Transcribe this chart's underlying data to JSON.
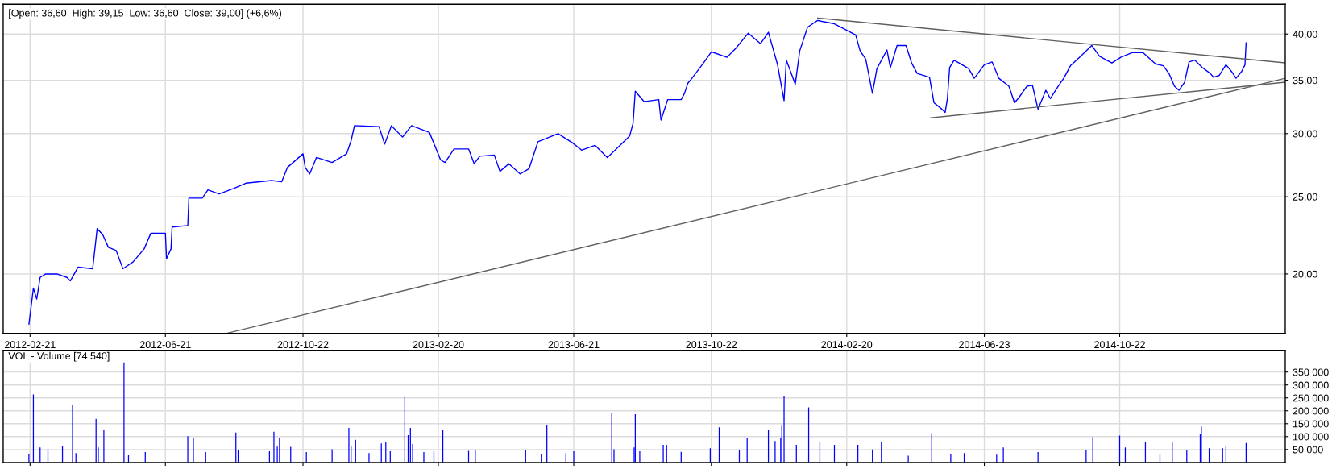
{
  "chart_data": [
    {
      "type": "line",
      "title": "[Open: 36,60  High: 39,15  Low: 36,60  Close: 39,00] (+6,6%)",
      "log": "y",
      "grid": true,
      "xlim": [
        "2012-01-28",
        "2015-03-19"
      ],
      "ylim": [
        16.84,
        43.6
      ],
      "xticks": [
        "2012-02-21",
        "2012-06-21",
        "2012-10-22",
        "2013-02-20",
        "2013-06-21",
        "2013-10-22",
        "2014-02-20",
        "2014-06-23",
        "2014-10-22"
      ],
      "yticks": [
        {
          "value": 20,
          "label": "20,00"
        },
        {
          "value": 25,
          "label": "25,00"
        },
        {
          "value": 30,
          "label": "30,00"
        },
        {
          "value": 35,
          "label": "35,00"
        },
        {
          "value": 40,
          "label": "40,00"
        }
      ],
      "x": [
        "2012-02-20",
        "2012-02-23",
        "2012-02-24",
        "2012-02-27",
        "2012-03-01",
        "2012-03-06",
        "2012-03-16",
        "2012-03-25",
        "2012-03-28",
        "2012-04-04",
        "2012-04-17",
        "2012-04-21",
        "2012-04-26",
        "2012-05-01",
        "2012-05-08",
        "2012-05-14",
        "2012-05-23",
        "2012-06-02",
        "2012-06-08",
        "2012-06-21",
        "2012-06-22",
        "2012-06-26",
        "2012-06-27",
        "2012-07-11",
        "2012-07-12",
        "2012-07-24",
        "2012-07-29",
        "2012-08-08",
        "2012-08-21",
        "2012-09-01",
        "2012-09-24",
        "2012-10-03",
        "2012-10-08",
        "2012-10-22",
        "2012-10-24",
        "2012-10-28",
        "2012-11-03",
        "2012-11-17",
        "2012-11-30",
        "2012-12-04",
        "2012-12-07",
        "2012-12-29",
        "2013-01-03",
        "2013-01-09",
        "2013-01-19",
        "2013-01-27",
        "2013-02-12",
        "2013-02-22",
        "2013-02-26",
        "2013-03-06",
        "2013-03-19",
        "2013-03-24",
        "2013-03-29",
        "2013-04-11",
        "2013-04-16",
        "2013-04-24",
        "2013-05-04",
        "2013-05-12",
        "2013-05-20",
        "2013-06-07",
        "2013-06-20",
        "2013-06-28",
        "2013-07-10",
        "2013-07-21",
        "2013-07-28",
        "2013-08-10",
        "2013-08-13",
        "2013-08-15",
        "2013-08-23",
        "2013-09-05",
        "2013-09-07",
        "2013-09-13",
        "2013-09-25",
        "2013-09-28",
        "2013-10-01",
        "2013-10-04",
        "2013-10-15",
        "2013-10-22",
        "2013-11-05",
        "2013-11-13",
        "2013-11-24",
        "2013-12-05",
        "2013-12-12",
        "2013-12-20",
        "2013-12-26",
        "2013-12-28",
        "2014-01-05",
        "2014-01-09",
        "2014-01-16",
        "2014-01-25",
        "2014-02-09",
        "2014-02-28",
        "2014-03-04",
        "2014-03-09",
        "2014-03-15",
        "2014-03-19",
        "2014-03-28",
        "2014-03-31",
        "2014-04-06",
        "2014-04-14",
        "2014-04-19",
        "2014-04-24",
        "2014-05-05",
        "2014-05-09",
        "2014-05-16",
        "2014-05-19",
        "2014-05-21",
        "2014-05-23",
        "2014-05-27",
        "2014-06-09",
        "2014-06-14",
        "2014-06-23",
        "2014-06-30",
        "2014-07-06",
        "2014-07-15",
        "2014-07-20",
        "2014-07-24",
        "2014-07-31",
        "2014-08-05",
        "2014-08-10",
        "2014-08-17",
        "2014-08-21",
        "2014-08-28",
        "2014-09-02",
        "2014-09-08",
        "2014-09-17",
        "2014-09-27",
        "2014-10-04",
        "2014-10-15",
        "2014-10-23",
        "2014-11-02",
        "2014-11-12",
        "2014-11-23",
        "2014-11-30",
        "2014-12-05",
        "2014-12-10",
        "2014-12-14",
        "2014-12-19",
        "2014-12-23",
        "2014-12-28",
        "2015-01-04",
        "2015-01-11",
        "2015-01-14",
        "2015-01-19",
        "2015-01-25",
        "2015-01-30",
        "2015-02-03",
        "2015-02-08",
        "2015-02-11",
        "2015-02-12"
      ],
      "series": [
        {
          "color": "#0000ff",
          "values": [
            17.3,
            18.7,
            19.2,
            18.6,
            19.8,
            20.0,
            20.0,
            19.8,
            19.6,
            20.4,
            20.3,
            22.8,
            22.4,
            21.6,
            21.4,
            20.3,
            20.7,
            21.5,
            22.5,
            22.5,
            20.9,
            21.5,
            22.9,
            23.0,
            24.9,
            24.9,
            25.5,
            25.2,
            25.6,
            26.0,
            26.2,
            26.1,
            27.2,
            28.3,
            27.2,
            26.7,
            28.0,
            27.6,
            28.3,
            29.4,
            30.7,
            30.6,
            29.1,
            30.7,
            29.7,
            30.7,
            30.1,
            27.8,
            27.6,
            28.7,
            28.7,
            27.5,
            28.1,
            28.2,
            26.9,
            27.5,
            26.7,
            27.1,
            29.3,
            30.0,
            29.2,
            28.6,
            29.0,
            28.0,
            28.6,
            29.8,
            30.9,
            33.9,
            32.9,
            33.1,
            31.2,
            33.1,
            33.1,
            33.7,
            34.7,
            35.1,
            36.8,
            38.0,
            37.4,
            38.4,
            40.1,
            38.9,
            40.2,
            36.7,
            33.0,
            37.1,
            34.6,
            38.1,
            40.8,
            41.6,
            41.2,
            39.9,
            38.1,
            37.2,
            33.7,
            36.2,
            38.2,
            36.3,
            38.7,
            38.7,
            36.8,
            35.7,
            35.3,
            32.8,
            32.2,
            31.9,
            33.2,
            36.3,
            37.1,
            36.2,
            35.2,
            36.6,
            36.9,
            35.2,
            34.4,
            32.8,
            33.3,
            34.4,
            34.5,
            32.2,
            34.0,
            33.2,
            34.4,
            35.2,
            36.5,
            37.5,
            38.7,
            37.5,
            36.8,
            37.4,
            37.9,
            37.9,
            36.7,
            36.5,
            35.7,
            34.4,
            34.0,
            34.8,
            36.9,
            37.1,
            36.3,
            35.7,
            35.3,
            35.5,
            36.6,
            35.9,
            35.2,
            35.9,
            36.6,
            39.0
          ]
        },
        {
          "color": "#606060",
          "x": [
            "2012-08-14",
            "2015-03-19"
          ],
          "values": [
            16.84,
            35.2
          ]
        },
        {
          "color": "#606060",
          "x": [
            "2014-01-25",
            "2015-03-19"
          ],
          "values": [
            41.9,
            36.8
          ]
        },
        {
          "color": "#606060",
          "x": [
            "2014-05-06",
            "2015-03-19"
          ],
          "values": [
            31.4,
            34.8
          ]
        }
      ]
    },
    {
      "type": "bar",
      "title": "VOL - Volume [74 540]",
      "grid": true,
      "tick_labels": "y",
      "color": "#0000ff",
      "xlim": [
        "2012-01-28",
        "2015-03-19"
      ],
      "ylim": [
        0,
        434000
      ],
      "xticks": [
        {
          "value": "2012-02-21",
          "label": null
        },
        {
          "value": "2012-06-21",
          "label": null
        },
        {
          "value": "2012-10-22",
          "label": null
        },
        {
          "value": "2013-02-20",
          "label": null
        },
        {
          "value": "2013-06-21",
          "label": null
        },
        {
          "value": "2013-10-22",
          "label": null
        },
        {
          "value": "2014-02-20",
          "label": null
        },
        {
          "value": "2014-06-23",
          "label": null
        },
        {
          "value": "2014-10-22",
          "label": null
        }
      ],
      "yticks": [
        {
          "value": 50000,
          "label": "50 000"
        },
        {
          "value": 100000,
          "label": "100 000"
        },
        {
          "value": 150000,
          "label": "150 000"
        },
        {
          "value": 200000,
          "label": "200 000"
        },
        {
          "value": 250000,
          "label": "250 000"
        },
        {
          "value": 300000,
          "label": "300 000"
        },
        {
          "value": 350000,
          "label": "350 000"
        }
      ],
      "x": [
        "2012-02-20",
        "2012-02-24",
        "2012-03-01",
        "2012-03-08",
        "2012-03-21",
        "2012-03-30",
        "2012-04-02",
        "2012-04-20",
        "2012-04-22",
        "2012-04-27",
        "2012-05-15",
        "2012-05-19",
        "2012-06-03",
        "2012-07-11",
        "2012-07-16",
        "2012-07-27",
        "2012-08-23",
        "2012-08-25",
        "2012-09-22",
        "2012-09-26",
        "2012-09-29",
        "2012-10-01",
        "2012-10-11",
        "2012-10-25",
        "2012-11-17",
        "2012-12-02",
        "2012-12-04",
        "2012-12-08",
        "2012-12-20",
        "2012-12-31",
        "2013-01-04",
        "2013-01-08",
        "2013-01-21",
        "2013-01-24",
        "2013-01-26",
        "2013-01-28",
        "2013-02-07",
        "2013-02-16",
        "2013-02-24",
        "2013-03-19",
        "2013-03-25",
        "2013-05-09",
        "2013-05-23",
        "2013-05-28",
        "2013-06-14",
        "2013-06-21",
        "2013-07-25",
        "2013-07-27",
        "2013-08-14",
        "2013-08-15",
        "2013-08-19",
        "2013-09-09",
        "2013-09-12",
        "2013-09-25",
        "2013-10-21",
        "2013-10-29",
        "2013-11-16",
        "2013-11-23",
        "2013-12-12",
        "2013-12-18",
        "2013-12-23",
        "2013-12-24",
        "2013-12-26",
        "2014-01-06",
        "2014-01-17",
        "2014-01-27",
        "2014-02-09",
        "2014-03-02",
        "2014-03-15",
        "2014-03-23",
        "2014-04-16",
        "2014-05-07",
        "2014-05-24",
        "2014-06-05",
        "2014-07-04",
        "2014-07-10",
        "2014-08-10",
        "2014-09-22",
        "2014-09-28",
        "2014-10-22",
        "2014-10-27",
        "2014-11-14",
        "2014-11-27",
        "2014-12-08",
        "2014-12-21",
        "2015-01-02",
        "2015-01-03",
        "2015-01-10",
        "2015-01-22",
        "2015-01-25",
        "2015-02-12"
      ],
      "values": [
        33000,
        263000,
        58000,
        51000,
        64000,
        223000,
        36000,
        169000,
        58000,
        126000,
        387000,
        28000,
        40000,
        102000,
        93000,
        40000,
        116000,
        46000,
        43000,
        119000,
        61000,
        96000,
        60000,
        40000,
        51000,
        134000,
        64000,
        88000,
        36000,
        74000,
        81000,
        43000,
        253000,
        106000,
        134000,
        71000,
        40000,
        43000,
        127000,
        45000,
        46000,
        46000,
        33000,
        145000,
        36000,
        43000,
        190000,
        51000,
        58000,
        187000,
        43000,
        68000,
        68000,
        41000,
        55000,
        136000,
        48000,
        93000,
        127000,
        83000,
        94000,
        142000,
        256000,
        68000,
        213000,
        78000,
        68000,
        68000,
        50000,
        81000,
        26000,
        114000,
        33000,
        36000,
        30000,
        58000,
        40000,
        48000,
        98000,
        104000,
        58000,
        81000,
        30000,
        78000,
        48000,
        111000,
        139000,
        55000,
        55000,
        64000,
        75000
      ]
    }
  ]
}
